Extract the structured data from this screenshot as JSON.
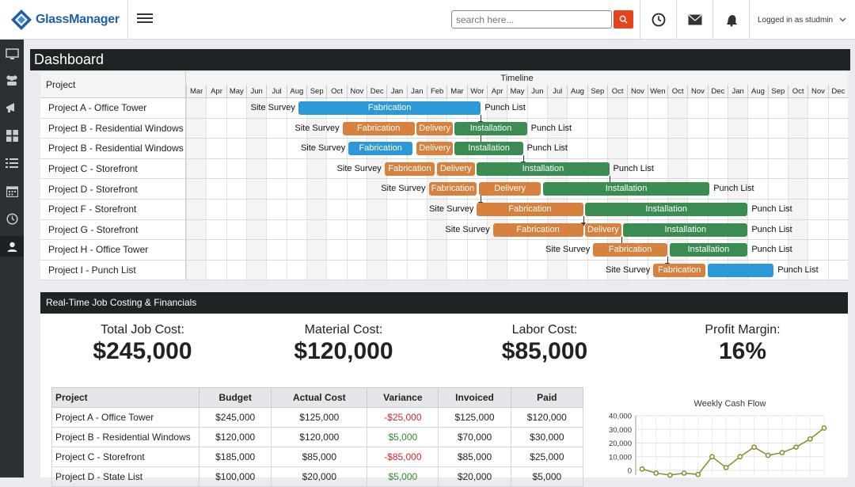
{
  "app": {
    "name": "GlassManager",
    "accent": "#e8431f",
    "brand": "#1f5fa8"
  },
  "header": {
    "search_placeholder": "search here...",
    "user_label": "Logged in as studmin"
  },
  "icons": {
    "sidebar": [
      "monitor-icon",
      "users-icon",
      "megaphone-icon",
      "grid-icon",
      "list-icon",
      "calendar-icon",
      "clock-icon",
      "user-card-icon"
    ],
    "topbar": [
      "clock-icon",
      "mail-icon",
      "bell-icon",
      "chevron-down-icon"
    ]
  },
  "dashboard": {
    "title": "Dashboard"
  },
  "gantt": {
    "project_header": "Project",
    "timeline_header": "Timeline",
    "months": [
      "Mar",
      "Apr",
      "May",
      "Jun",
      "Jul",
      "Aug",
      "Sep",
      "Oct",
      "Nov",
      "Dec",
      "Jan",
      "Jan",
      "Feb",
      "Mar",
      "Wor",
      "Apr",
      "May",
      "Jun",
      "Jul",
      "Aug",
      "Sep",
      "Oct",
      "Nov",
      "Wen",
      "Oct",
      "Nov",
      "Dec",
      "Jan",
      "Aug",
      "Sep",
      "Oct",
      "Nov",
      "Dec"
    ],
    "shaded_months": [
      0,
      3,
      6,
      9,
      12,
      15,
      18,
      21,
      24,
      27,
      30
    ],
    "rows": [
      {
        "name": "Project A - Office Tower",
        "start_label": "Site Survey",
        "end_label": "Punch List",
        "start_month": 5.6,
        "segments": [
          {
            "label": "Fabrication",
            "color": "blue",
            "start": 5.6,
            "end": 14.7
          }
        ],
        "arrow_month": 14.7
      },
      {
        "name": "Project B - Residential Windows",
        "start_label": "Site Survey",
        "end_label": "Punch List",
        "segments": [
          {
            "label": "Fabrication",
            "color": "orange",
            "start": 7.8,
            "end": 11.4
          },
          {
            "label": "Delivery",
            "color": "orange",
            "start": 11.5,
            "end": 13.3
          },
          {
            "label": "Installation",
            "color": "green",
            "start": 13.4,
            "end": 17.0
          }
        ],
        "arrow_month": 14.7
      },
      {
        "name": "Project B - Residential Windows",
        "start_label": "Site Survey",
        "end_label": "Punch List",
        "segments": [
          {
            "label": "Fabrication",
            "color": "blue",
            "start": 8.1,
            "end": 11.3
          },
          {
            "label": "Delivery",
            "color": "orange",
            "start": 11.5,
            "end": 13.3
          },
          {
            "label": "Installation",
            "color": "green",
            "start": 13.4,
            "end": 16.8
          }
        ],
        "arrow_month": 16.8
      },
      {
        "name": "Project C - Storefront",
        "start_label": "Site Survey",
        "end_label": "Punch List",
        "segments": [
          {
            "label": "Fabrication",
            "color": "orange",
            "start": 9.9,
            "end": 12.4
          },
          {
            "label": "Delivery",
            "color": "orange",
            "start": 12.5,
            "end": 14.4
          },
          {
            "label": "Installation",
            "color": "green",
            "start": 14.5,
            "end": 21.1
          }
        ],
        "arrow_month": 21.1
      },
      {
        "name": "Project D - Storefront",
        "start_label": "Site Survey",
        "end_label": "Punch List",
        "segments": [
          {
            "label": "Fabrication",
            "color": "orange",
            "start": 12.1,
            "end": 14.5
          },
          {
            "label": "Delivery",
            "color": "orange",
            "start": 14.6,
            "end": 17.7
          },
          {
            "label": "Installation",
            "color": "green",
            "start": 17.8,
            "end": 26.1
          }
        ],
        "arrow_month": 14.7
      },
      {
        "name": "Project F - Storefront",
        "start_label": "Site Survey",
        "end_label": "Punch List",
        "segments": [
          {
            "label": "Fabrication",
            "color": "orange",
            "start": 14.5,
            "end": 19.8
          },
          {
            "label": "Installation",
            "color": "green",
            "start": 19.9,
            "end": 28.0
          }
        ],
        "arrow_month": 19.8
      },
      {
        "name": "Project G - Storefront",
        "start_label": "Site Survey",
        "end_label": "Punch List",
        "segments": [
          {
            "label": "Fabrication",
            "color": "orange",
            "start": 15.3,
            "end": 19.8
          },
          {
            "label": "Delivery",
            "color": "orange",
            "start": 19.9,
            "end": 21.7
          },
          {
            "label": "Installation",
            "color": "green",
            "start": 21.8,
            "end": 28.0
          }
        ],
        "arrow_month": 21.7
      },
      {
        "name": "Project H - Office Tower",
        "start_label": "Site Survey",
        "end_label": "Punch List",
        "segments": [
          {
            "label": "Fabrication",
            "color": "orange",
            "start": 20.3,
            "end": 24.0
          },
          {
            "label": "Installation",
            "color": "green",
            "start": 24.1,
            "end": 28.0
          }
        ],
        "arrow_month": 24.0
      },
      {
        "name": "Project I - Punch List",
        "start_label": "Site Survey",
        "end_label": "Punch List",
        "segments": [
          {
            "label": "Fabrication",
            "color": "orange",
            "start": 23.3,
            "end": 25.9
          },
          {
            "label": "",
            "color": "blue",
            "start": 26.0,
            "end": 29.3
          }
        ],
        "arrow_month": null
      }
    ]
  },
  "financials": {
    "title": "Real-Time Job Costing & Financials",
    "kpis": [
      {
        "label": "Total Job Cost:",
        "value": "$245,000"
      },
      {
        "label": "Material Cost:",
        "value": "$120,000"
      },
      {
        "label": "Labor Cost:",
        "value": "$85,000"
      },
      {
        "label": "Profit Margin:",
        "value": "16%"
      }
    ],
    "table": {
      "headers": [
        "Project",
        "Budget",
        "Actual Cost",
        "Variance",
        "Invoiced",
        "Paid"
      ],
      "rows": [
        [
          "Project A - Office Tower",
          "$245,000",
          "$125,000",
          "-$25,000",
          "$125,000",
          "$120,000"
        ],
        [
          "Project B - Residential Windows",
          "$120,000",
          "$120,000",
          "$5,000",
          "$70,000",
          "$30,000"
        ],
        [
          "Project C - Storefront",
          "$185,000",
          "$85,000",
          "-$85,000",
          "$85,000",
          "$25,000"
        ],
        [
          "Project D - State List",
          "$100,000",
          "$20,000",
          "$5,000",
          "$20,000",
          "$5,000"
        ]
      ],
      "variance_colors": [
        "neg",
        "pos",
        "neg",
        "pos"
      ]
    }
  },
  "chart_data": {
    "type": "line",
    "title": "Weekly Cash Flow",
    "xlabel": "",
    "ylabel": "",
    "ylim": [
      0,
      40000
    ],
    "yticks": [
      "40,000",
      "30,000",
      "20,000",
      "10,000",
      "0"
    ],
    "series": [
      {
        "values": [
          1000,
          -2000,
          -3500,
          -2000,
          -3000,
          10000,
          2000,
          10000,
          17000,
          11000,
          13000,
          17000,
          23000,
          31000
        ],
        "color": "#8a8a2a"
      }
    ],
    "grid": true
  }
}
